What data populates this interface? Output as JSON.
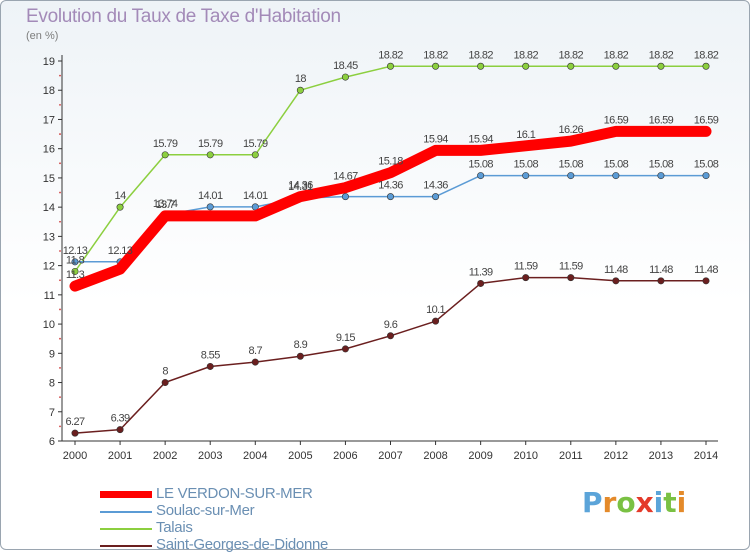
{
  "title": "Evolution du Taux de Taxe d'Habitation",
  "unit_label": "(en %)",
  "logo_text": "Proxiti",
  "chart_data": {
    "type": "line",
    "x": [
      2000,
      2001,
      2002,
      2003,
      2004,
      2005,
      2006,
      2007,
      2008,
      2009,
      2010,
      2011,
      2012,
      2013,
      2014
    ],
    "ylim": [
      6,
      19
    ],
    "yticks": [
      6,
      7,
      8,
      9,
      10,
      11,
      12,
      13,
      14,
      15,
      16,
      17,
      18,
      19
    ],
    "grid": false,
    "legend_position": "bottom-left",
    "series": [
      {
        "name": "LE VERDON-SUR-MER",
        "color": "#ff0000",
        "emphasis": true,
        "values": [
          11.3,
          11.88,
          13.7,
          13.7,
          13.7,
          14.36,
          14.67,
          15.18,
          15.94,
          15.94,
          16.1,
          16.26,
          16.59,
          16.59,
          16.59
        ],
        "labels": [
          "11.3",
          "",
          "13.7",
          "",
          "",
          "14.36",
          "14.67",
          "15.18",
          "15.94",
          "15.94",
          "16.1",
          "16.26",
          "16.59",
          "16.59",
          "16.59"
        ]
      },
      {
        "name": "Soulac-sur-Mer",
        "color": "#5b9bd5",
        "emphasis": false,
        "values": [
          12.13,
          12.13,
          13.74,
          14.01,
          14.01,
          14.31,
          14.36,
          14.36,
          14.36,
          15.08,
          15.08,
          15.08,
          15.08,
          15.08,
          15.08
        ],
        "labels": [
          "12.13",
          "12.13",
          "13.74",
          "14.01",
          "14.01",
          "14.31",
          "",
          "14.36",
          "14.36",
          "15.08",
          "15.08",
          "15.08",
          "15.08",
          "15.08",
          "15.08"
        ]
      },
      {
        "name": "Talais",
        "color": "#8ccf3f",
        "emphasis": false,
        "values": [
          11.8,
          14,
          15.79,
          15.79,
          15.79,
          18,
          18.45,
          18.82,
          18.82,
          18.82,
          18.82,
          18.82,
          18.82,
          18.82,
          18.82
        ],
        "labels": [
          "11.8",
          "14",
          "15.79",
          "15.79",
          "15.79",
          "18",
          "18.45",
          "18.82",
          "18.82",
          "18.82",
          "18.82",
          "18.82",
          "18.82",
          "18.82",
          "18.82"
        ]
      },
      {
        "name": "Saint-Georges-de-Didonne",
        "color": "#6b1f1f",
        "emphasis": false,
        "values": [
          6.27,
          6.39,
          8,
          8.55,
          8.7,
          8.9,
          9.15,
          9.6,
          10.1,
          11.39,
          11.59,
          11.59,
          11.48,
          11.48,
          11.48
        ],
        "labels": [
          "6.27",
          "6.39",
          "8",
          "8.55",
          "8.7",
          "8.9",
          "9.15",
          "9.6",
          "10.1",
          "11.39",
          "11.59",
          "11.59",
          "11.48",
          "11.48",
          "11.48"
        ]
      }
    ]
  }
}
